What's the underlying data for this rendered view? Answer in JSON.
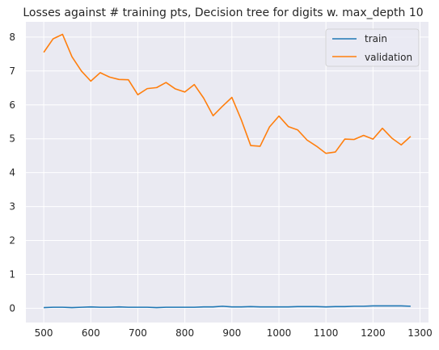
{
  "chart_data": {
    "type": "line",
    "title": "Losses against # training pts, Decision tree for digits w. max_depth 10",
    "xlabel": "",
    "ylabel": "",
    "xlim": [
      462,
      1318
    ],
    "ylim": [
      -0.42,
      8.45
    ],
    "xticks": [
      500,
      600,
      700,
      800,
      900,
      1000,
      1100,
      1200,
      1300
    ],
    "yticks": [
      0,
      1,
      2,
      3,
      4,
      5,
      6,
      7,
      8
    ],
    "grid": true,
    "legend_position": "top-right",
    "x": [
      500,
      520,
      540,
      560,
      580,
      600,
      620,
      640,
      660,
      680,
      700,
      720,
      740,
      760,
      780,
      800,
      820,
      840,
      860,
      880,
      900,
      920,
      940,
      960,
      980,
      1000,
      1020,
      1040,
      1060,
      1080,
      1100,
      1120,
      1140,
      1160,
      1180,
      1200,
      1220,
      1240,
      1260,
      1280
    ],
    "series": [
      {
        "name": "train",
        "color": "#1f77b4",
        "values": [
          0.02,
          0.03,
          0.03,
          0.02,
          0.03,
          0.04,
          0.03,
          0.03,
          0.04,
          0.03,
          0.03,
          0.03,
          0.02,
          0.03,
          0.03,
          0.03,
          0.03,
          0.04,
          0.04,
          0.06,
          0.04,
          0.04,
          0.05,
          0.04,
          0.04,
          0.04,
          0.04,
          0.05,
          0.05,
          0.05,
          0.04,
          0.05,
          0.05,
          0.06,
          0.06,
          0.07,
          0.07,
          0.07,
          0.07,
          0.06
        ]
      },
      {
        "name": "validation",
        "color": "#ff7f0e",
        "values": [
          7.55,
          7.95,
          8.08,
          7.42,
          7.0,
          6.7,
          6.95,
          6.82,
          6.75,
          6.74,
          6.3,
          6.48,
          6.51,
          6.66,
          6.47,
          6.38,
          6.6,
          6.2,
          5.68,
          5.96,
          6.22,
          5.56,
          4.8,
          4.78,
          5.35,
          5.67,
          5.36,
          5.26,
          4.96,
          4.78,
          4.57,
          4.61,
          4.99,
          4.98,
          5.1,
          4.99,
          5.31,
          5.02,
          4.82,
          5.07
        ]
      }
    ]
  }
}
